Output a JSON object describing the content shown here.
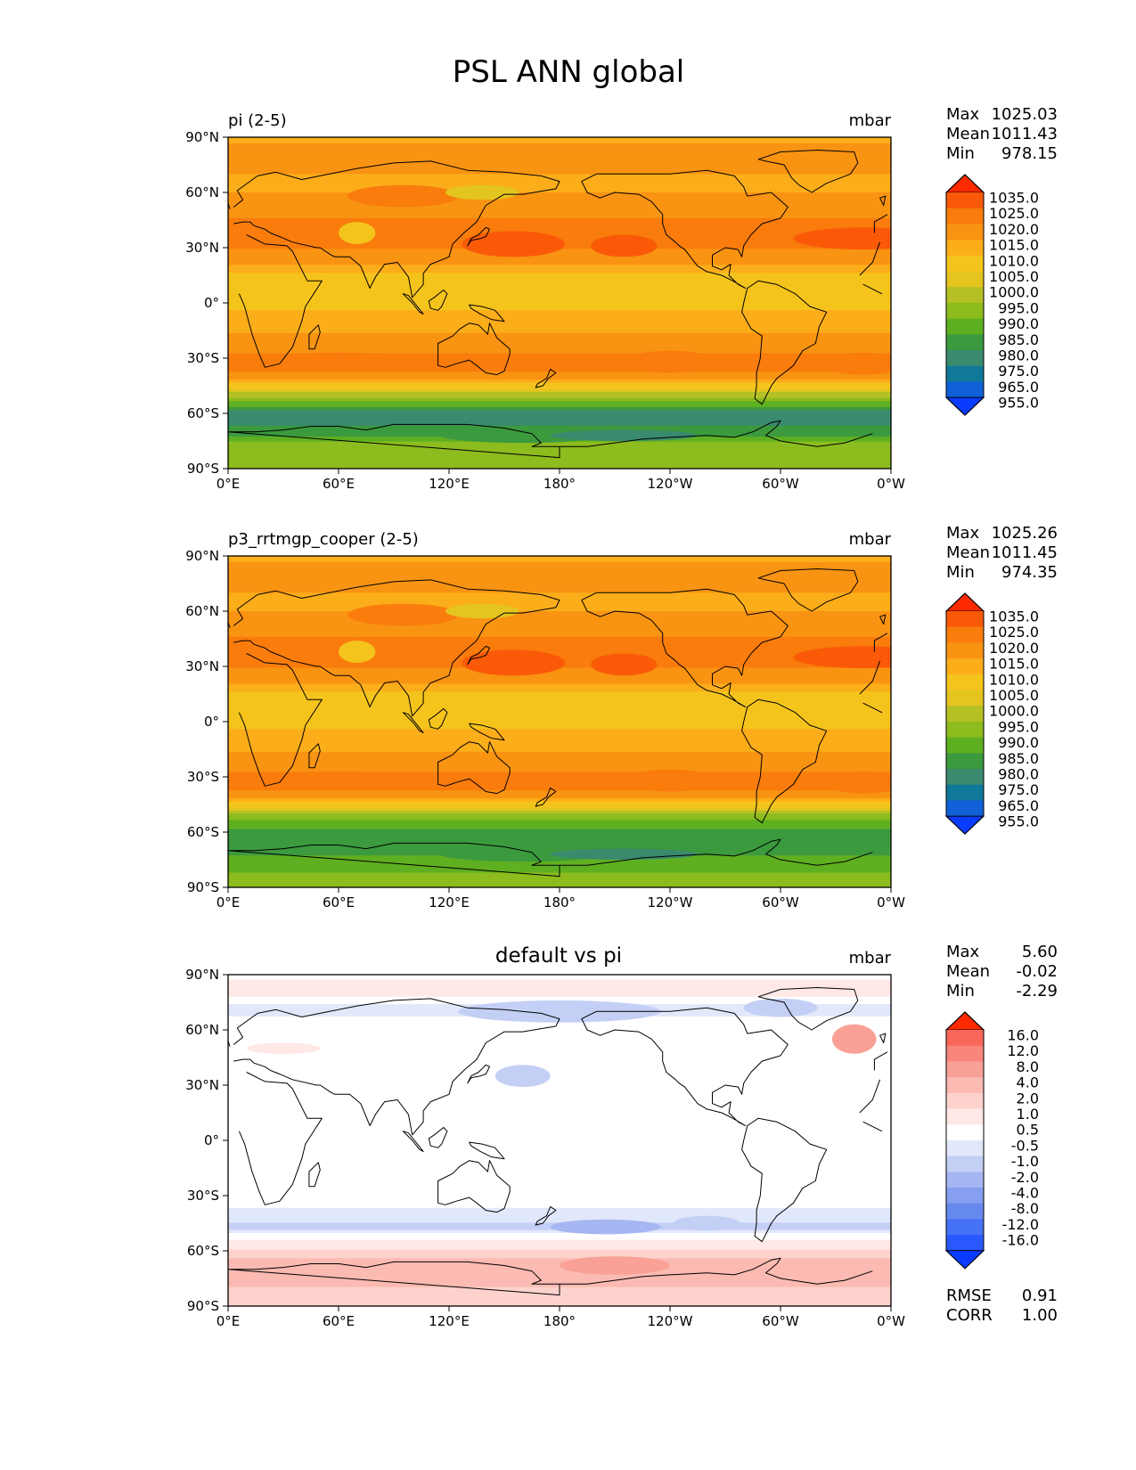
{
  "title": "PSL ANN global",
  "lat_ticks": [
    "90°N",
    "60°N",
    "30°N",
    "0°",
    "30°S",
    "60°S",
    "90°S"
  ],
  "lon_ticks": [
    "0°E",
    "60°E",
    "120°E",
    "180°",
    "120°W",
    "60°W",
    "0°W"
  ],
  "colors": {
    "abs_levels": [
      "#0a3cff",
      "#1060d8",
      "#107898",
      "#3a8a6e",
      "#3c9a3e",
      "#5fb020",
      "#8cbc1e",
      "#b5c024",
      "#e4c41f",
      "#f5c41c",
      "#fcad1a",
      "#f99312",
      "#f97c0c",
      "#fa5a08",
      "#ff2a00"
    ],
    "diff_levels": [
      "#0a3cff",
      "#2958ff",
      "#4672f6",
      "#6689f0",
      "#869ff0",
      "#a6b6f2",
      "#c4cff6",
      "#e2e8fb",
      "#ffffff",
      "#ffe8e6",
      "#fdd2cd",
      "#fbbab2",
      "#f9a196",
      "#f8867a",
      "#f8675a",
      "#ff2a00"
    ],
    "continent_line": "#000000"
  },
  "panels": [
    {
      "id": "pi",
      "left_title": "pi (2-5)",
      "center_title": "",
      "units": "mbar",
      "stats": [
        {
          "label": "Max",
          "value": "1025.03"
        },
        {
          "label": "Mean",
          "value": "1011.43"
        },
        {
          "label": "Min",
          "value": "978.15"
        }
      ],
      "colorbar_type": "abs",
      "colorbar_labels": [
        "1035.0",
        "1025.0",
        "1020.0",
        "1015.0",
        "1010.0",
        "1005.0",
        "1000.0",
        "995.0",
        "990.0",
        "985.0",
        "980.0",
        "975.0",
        "965.0",
        "955.0"
      ],
      "bottom_stats": []
    },
    {
      "id": "p3",
      "left_title": "p3_rrtmgp_cooper (2-5)",
      "center_title": "",
      "units": "mbar",
      "stats": [
        {
          "label": "Max",
          "value": "1025.26"
        },
        {
          "label": "Mean",
          "value": "1011.45"
        },
        {
          "label": "Min",
          "value": "974.35"
        }
      ],
      "colorbar_type": "abs",
      "colorbar_labels": [
        "1035.0",
        "1025.0",
        "1020.0",
        "1015.0",
        "1010.0",
        "1005.0",
        "1000.0",
        "995.0",
        "990.0",
        "985.0",
        "980.0",
        "975.0",
        "965.0",
        "955.0"
      ],
      "bottom_stats": []
    },
    {
      "id": "diff",
      "left_title": "",
      "center_title": "default vs pi",
      "units": "mbar",
      "stats": [
        {
          "label": "Max",
          "value": "5.60"
        },
        {
          "label": "Mean",
          "value": "-0.02"
        },
        {
          "label": "Min",
          "value": "-2.29"
        }
      ],
      "colorbar_type": "diff",
      "colorbar_labels": [
        "16.0",
        "12.0",
        "8.0",
        "4.0",
        "2.0",
        "1.0",
        "0.5",
        "-0.5",
        "-1.0",
        "-2.0",
        "-4.0",
        "-8.0",
        "-12.0",
        "-16.0"
      ],
      "bottom_stats": [
        {
          "label": "RMSE",
          "value": "0.91"
        },
        {
          "label": "CORR",
          "value": "1.00"
        }
      ]
    }
  ]
}
